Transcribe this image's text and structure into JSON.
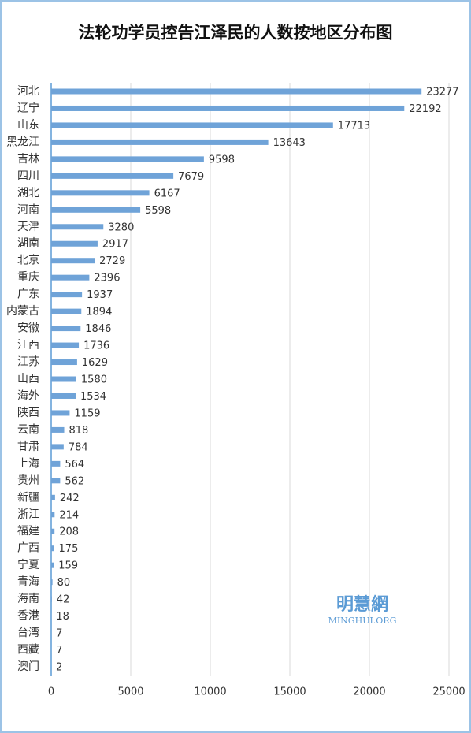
{
  "chart_data": {
    "type": "bar",
    "orientation": "horizontal",
    "title": "法轮功学员控告江泽民的人数按地区分布图",
    "categories": [
      "河北",
      "辽宁",
      "山东",
      "黑龙江",
      "吉林",
      "四川",
      "湖北",
      "河南",
      "天津",
      "湖南",
      "北京",
      "重庆",
      "广东",
      "内蒙古",
      "安徽",
      "江西",
      "江苏",
      "山西",
      "海外",
      "陕西",
      "云南",
      "甘肃",
      "上海",
      "贵州",
      "新疆",
      "浙江",
      "福建",
      "广西",
      "宁夏",
      "青海",
      "海南",
      "香港",
      "台湾",
      "西藏",
      "澳门"
    ],
    "values": [
      23277,
      22192,
      17713,
      13643,
      9598,
      7679,
      6167,
      5598,
      3280,
      2917,
      2729,
      2396,
      1937,
      1894,
      1846,
      1736,
      1629,
      1580,
      1534,
      1159,
      818,
      784,
      564,
      562,
      242,
      214,
      208,
      175,
      159,
      80,
      42,
      18,
      7,
      7,
      2
    ],
    "color": "#6fa3d8",
    "xlim": [
      0,
      25000
    ],
    "xticks": [
      0,
      5000,
      10000,
      15000,
      20000,
      25000
    ],
    "grid": true,
    "watermark": {
      "name": "明慧網",
      "site": "MINGHUI.ORG"
    }
  }
}
